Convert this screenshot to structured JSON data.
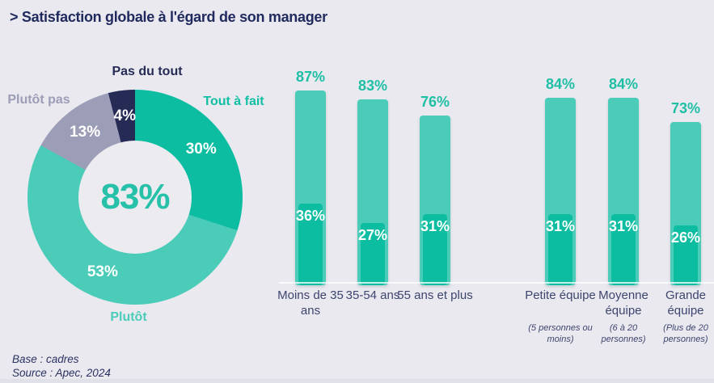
{
  "title": "> Satisfaction globale à l'égard de son manager",
  "footer": {
    "base": "Base : cadres",
    "source": "Source : Apec, 2024"
  },
  "colors": {
    "background": "#e9e9ef",
    "title_navy": "#212a5e",
    "teal_dark": "#0cbda2",
    "teal_light": "#4bccb8",
    "gray": "#9c9db6",
    "navy": "#262b55",
    "teal_text": "#1fbfa6",
    "label_navy": "#3e456f"
  },
  "chart_data": [
    {
      "type": "pie",
      "subtype": "donut",
      "center_label": "83%",
      "value_suffix": "%",
      "slices": [
        {
          "label": "Tout à fait",
          "value": 30,
          "color": "#0cbda2"
        },
        {
          "label": "Plutôt",
          "value": 53,
          "color": "#4bccb8"
        },
        {
          "label": "Plutôt pas",
          "value": 13,
          "color": "#9c9db6"
        },
        {
          "label": "Pas du tout",
          "value": 4,
          "color": "#262b55"
        }
      ]
    },
    {
      "type": "bar",
      "value_suffix": "%",
      "ylim": [
        0,
        100
      ],
      "outer_color": "#4bccb8",
      "inner_color": "#0cbda2",
      "groups": [
        {
          "categories": [
            {
              "label": "Moins de 35 ans"
            },
            {
              "label": "35-54 ans"
            },
            {
              "label": "55 ans et plus"
            }
          ],
          "outer_values": [
            87,
            83,
            76
          ],
          "inner_values": [
            36,
            27,
            31
          ]
        },
        {
          "categories": [
            {
              "label": "Petite équipe",
              "sublabel": "(5 personnes ou moins)"
            },
            {
              "label": "Moyenne équipe",
              "sublabel": "(6 à 20 personnes)"
            },
            {
              "label": "Grande équipe",
              "sublabel": "(Plus de 20 personnes)"
            }
          ],
          "outer_values": [
            84,
            84,
            73
          ],
          "inner_values": [
            31,
            31,
            26
          ]
        }
      ]
    }
  ]
}
